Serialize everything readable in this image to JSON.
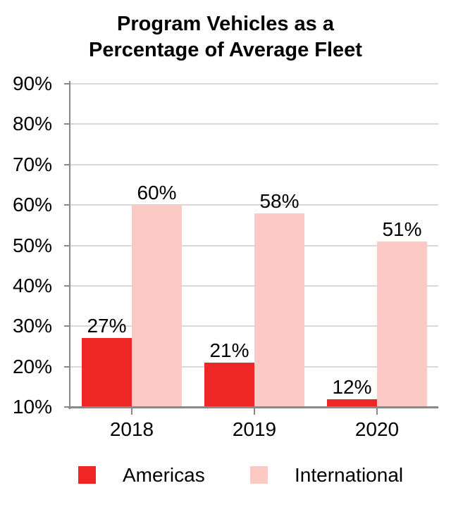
{
  "title": {
    "line1": "Program Vehicles as a",
    "line2": "Percentage of Average Fleet"
  },
  "chart_data": {
    "type": "bar",
    "title": "Program Vehicles as a Percentage of Average Fleet",
    "categories": [
      "2018",
      "2019",
      "2020"
    ],
    "series": [
      {
        "name": "Americas",
        "color": "#EE2624",
        "values": [
          27,
          21,
          12
        ],
        "data_labels": [
          "27%",
          "21%",
          "12%"
        ]
      },
      {
        "name": "International",
        "color": "#FCC9C5",
        "values": [
          60,
          58,
          51
        ],
        "data_labels": [
          "60%",
          "58%",
          "51%"
        ]
      }
    ],
    "xlabel": "",
    "ylabel": "",
    "ylim": [
      10,
      90
    ],
    "y_tick_step": 10,
    "y_tick_labels": [
      "90%",
      "80%",
      "70%",
      "60%",
      "50%",
      "40%",
      "30%",
      "20%",
      "10%"
    ],
    "grid": true,
    "gridlines_at": [
      20,
      30,
      40,
      50,
      60,
      70,
      80,
      90
    ],
    "legend_position": "bottom",
    "legend_labels": [
      "Americas",
      "International"
    ],
    "colors": {
      "americas": "#EE2624",
      "international": "#FCC9C5",
      "axis": "#898989",
      "gridline": "#D9D9D9",
      "text": "#000000"
    }
  }
}
